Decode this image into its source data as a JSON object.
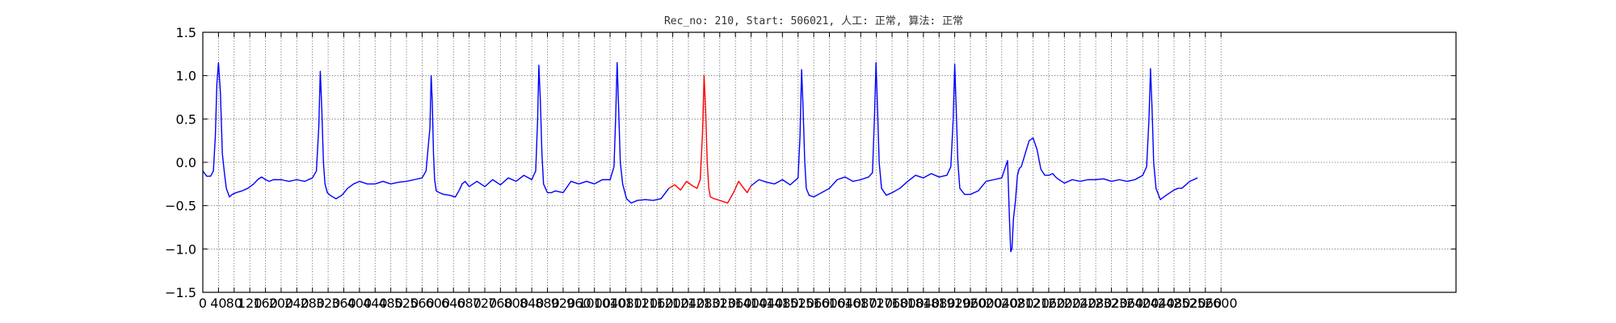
{
  "chart_data": {
    "type": "line",
    "title": "Rec_no: 210, Start: 506021, 人工: 正常, 算法: 正常",
    "xlabel": "",
    "ylabel": "",
    "xlim": [
      0,
      3200
    ],
    "ylim": [
      -1.5,
      1.5
    ],
    "grid": true,
    "grid_style": "dotted",
    "x_ticks": [
      0,
      40,
      80,
      120,
      160,
      200,
      240,
      280,
      320,
      360,
      400,
      440,
      480,
      520,
      560,
      600,
      640,
      680,
      720,
      760,
      800,
      840,
      880,
      920,
      960,
      1000,
      1040,
      1080,
      1120,
      1160,
      1200,
      1240,
      1280,
      1320,
      1360,
      1400,
      1440,
      1480,
      1520,
      1560,
      1600,
      1640,
      1680,
      1720,
      1760,
      1800,
      1840,
      1880,
      1920,
      1960,
      2000,
      2040,
      2080,
      2120,
      2160,
      2200,
      2240,
      2280,
      2320,
      2360,
      2400,
      2440,
      2480,
      2520,
      2560,
      2600
    ],
    "x_tick_labels": [
      "0",
      "40",
      "80",
      "120",
      "160",
      "200",
      "240",
      "280",
      "320",
      "360",
      "400",
      "440",
      "480",
      "520",
      "560",
      "600",
      "640",
      "680",
      "720",
      "760",
      "800",
      "840",
      "880",
      "920",
      "960",
      "1000",
      "1040",
      "1080",
      "1120",
      "1160",
      "1200",
      "1240",
      "1280",
      "1320",
      "1360",
      "1400",
      "1440",
      "1480",
      "1520",
      "1560",
      "1600",
      "1640",
      "1680",
      "1720",
      "1760",
      "1800",
      "1840",
      "1880",
      "1920",
      "1960",
      "2000",
      "2040",
      "2080",
      "2120",
      "2160",
      "2200",
      "2240",
      "2280",
      "2320",
      "2360",
      "2400",
      "2440",
      "2480",
      "2520",
      "2560",
      "2600"
    ],
    "y_ticks": [
      -1.5,
      -1.0,
      -0.5,
      0.0,
      0.5,
      1.0,
      1.5
    ],
    "y_tick_labels": [
      "−1.5",
      "−1.0",
      "−0.5",
      "0.0",
      "0.5",
      "1.0",
      "1.5"
    ],
    "series": [
      {
        "color": "#0000ff",
        "x": [
          0,
          10,
          20,
          27,
          32,
          36,
          40,
          45,
          50,
          55,
          60,
          68,
          75,
          85,
          100,
          115,
          130,
          140,
          150,
          160,
          170,
          180,
          200,
          220,
          240,
          260,
          280,
          290,
          296,
          300,
          304,
          308,
          312,
          318,
          325,
          340,
          355,
          370,
          385,
          400,
          420,
          440,
          460,
          480,
          500,
          520,
          540,
          560,
          570,
          580,
          583,
          586,
          589,
          592,
          596,
          604,
          615,
          630,
          645,
          655,
          662,
          670,
          680,
          700,
          720,
          740,
          760,
          780,
          800,
          820,
          840,
          850,
          855,
          858,
          862,
          866,
          870,
          880,
          890,
          900,
          920,
          940,
          960,
          980,
          1000,
          1020,
          1040,
          1050,
          1054,
          1058,
          1062,
          1066,
          1072,
          1082,
          1094,
          1110,
          1130,
          1150,
          1170,
          1190
        ],
        "y": [
          -0.1,
          -0.16,
          -0.16,
          -0.1,
          0.3,
          0.9,
          1.15,
          0.8,
          0.1,
          -0.12,
          -0.3,
          -0.4,
          -0.37,
          -0.35,
          -0.33,
          -0.3,
          -0.25,
          -0.2,
          -0.17,
          -0.2,
          -0.22,
          -0.2,
          -0.2,
          -0.22,
          -0.2,
          -0.22,
          -0.18,
          -0.1,
          0.4,
          1.05,
          0.6,
          0.0,
          -0.25,
          -0.35,
          -0.38,
          -0.42,
          -0.38,
          -0.3,
          -0.25,
          -0.22,
          -0.25,
          -0.25,
          -0.22,
          -0.25,
          -0.23,
          -0.22,
          -0.2,
          -0.18,
          -0.1,
          0.4,
          1.0,
          0.7,
          0.1,
          -0.2,
          -0.33,
          -0.35,
          -0.37,
          -0.38,
          -0.4,
          -0.32,
          -0.25,
          -0.22,
          -0.28,
          -0.22,
          -0.28,
          -0.2,
          -0.26,
          -0.18,
          -0.22,
          -0.15,
          -0.2,
          -0.1,
          0.5,
          1.12,
          0.7,
          0.1,
          -0.25,
          -0.35,
          -0.35,
          -0.33,
          -0.35,
          -0.22,
          -0.25,
          -0.22,
          -0.25,
          -0.2,
          -0.2,
          -0.05,
          0.5,
          1.15,
          0.6,
          0.0,
          -0.25,
          -0.42,
          -0.47,
          -0.44,
          -0.43,
          -0.44,
          -0.42,
          -0.3
        ]
      },
      {
        "color": "#ff0000",
        "x": [
          1190,
          1205,
          1220,
          1235,
          1250,
          1262,
          1270,
          1276,
          1280,
          1284,
          1288,
          1292,
          1296,
          1306,
          1320,
          1340,
          1355,
          1368,
          1378,
          1390,
          1400
        ],
        "y": [
          -0.3,
          -0.26,
          -0.32,
          -0.22,
          -0.27,
          -0.3,
          -0.2,
          0.35,
          1.0,
          0.6,
          0.0,
          -0.3,
          -0.4,
          -0.42,
          -0.44,
          -0.47,
          -0.35,
          -0.22,
          -0.28,
          -0.35,
          -0.27
        ]
      },
      {
        "color": "#0000ff",
        "x": [
          1400,
          1420,
          1440,
          1460,
          1480,
          1500,
          1520,
          1525,
          1529,
          1533,
          1537,
          1541,
          1548,
          1560,
          1580,
          1600,
          1620,
          1640,
          1660,
          1680,
          1700,
          1710,
          1715,
          1719,
          1723,
          1727,
          1733,
          1745,
          1760,
          1780,
          1800,
          1820,
          1840,
          1860,
          1880,
          1900,
          1910,
          1916,
          1920,
          1924,
          1928,
          1933,
          1945,
          1960,
          1980,
          2000,
          2020,
          2040,
          2055,
          2060,
          2063,
          2066,
          2070,
          2075,
          2080,
          2085,
          2090,
          2100,
          2110,
          2120,
          2130,
          2140,
          2150,
          2160,
          2170,
          2180,
          2200,
          2220,
          2240,
          2260,
          2280,
          2300,
          2320,
          2340,
          2360,
          2380,
          2400,
          2410,
          2416,
          2420,
          2424,
          2428,
          2434,
          2445,
          2460,
          2480,
          2490,
          2500,
          2520,
          2540
        ],
        "y": [
          -0.27,
          -0.2,
          -0.23,
          -0.25,
          -0.2,
          -0.26,
          -0.18,
          0.3,
          1.07,
          0.6,
          0.0,
          -0.3,
          -0.38,
          -0.4,
          -0.35,
          -0.3,
          -0.2,
          -0.17,
          -0.22,
          -0.2,
          -0.17,
          -0.12,
          0.5,
          1.15,
          0.6,
          0.0,
          -0.3,
          -0.38,
          -0.35,
          -0.3,
          -0.22,
          -0.15,
          -0.18,
          -0.13,
          -0.17,
          -0.15,
          -0.05,
          0.5,
          1.13,
          0.6,
          0.0,
          -0.3,
          -0.37,
          -0.37,
          -0.33,
          -0.22,
          -0.2,
          -0.18,
          0.02,
          -0.7,
          -1.03,
          -1.0,
          -0.65,
          -0.45,
          -0.15,
          -0.07,
          -0.05,
          0.1,
          0.25,
          0.28,
          0.15,
          -0.08,
          -0.15,
          -0.15,
          -0.13,
          -0.18,
          -0.24,
          -0.2,
          -0.22,
          -0.2,
          -0.2,
          -0.19,
          -0.22,
          -0.2,
          -0.22,
          -0.2,
          -0.15,
          -0.05,
          0.5,
          1.08,
          0.6,
          0.0,
          -0.3,
          -0.43,
          -0.38,
          -0.32,
          -0.3,
          -0.3,
          -0.22,
          -0.18
        ]
      }
    ]
  }
}
